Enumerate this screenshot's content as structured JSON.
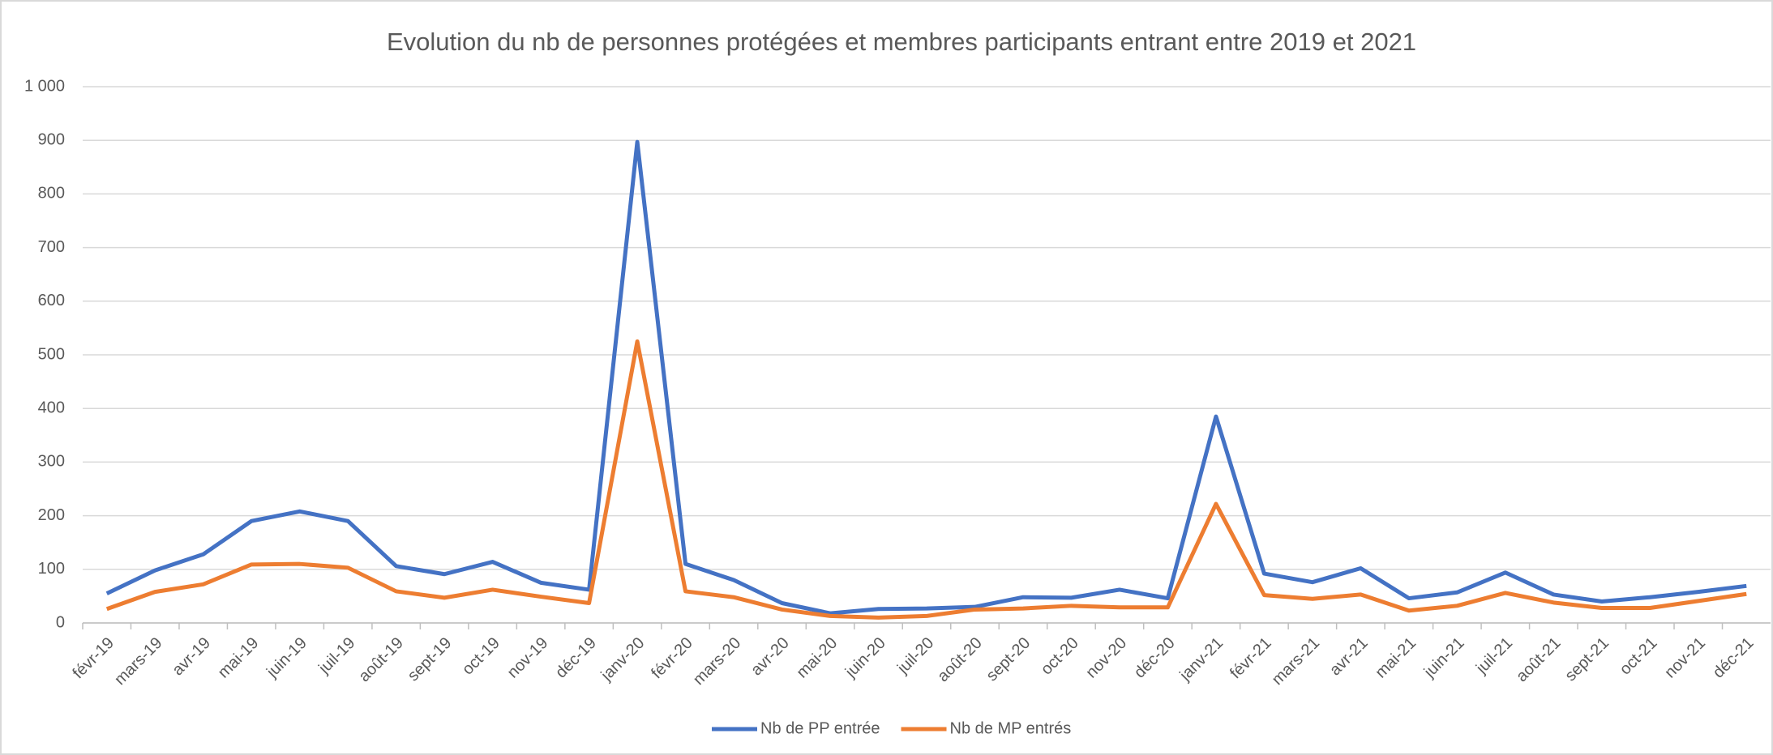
{
  "chart_data": {
    "type": "line",
    "title": "Evolution du nb de personnes protégées et membres participants entrant entre 2019 et 2021",
    "categories": [
      "févr-19",
      "mars-19",
      "avr-19",
      "mai-19",
      "juin-19",
      "juil-19",
      "août-19",
      "sept-19",
      "oct-19",
      "nov-19",
      "déc-19",
      "janv-20",
      "févr-20",
      "mars-20",
      "avr-20",
      "mai-20",
      "juin-20",
      "juil-20",
      "août-20",
      "sept-20",
      "oct-20",
      "nov-20",
      "déc-20",
      "janv-21",
      "févr-21",
      "mars-21",
      "avr-21",
      "mai-21",
      "juin-21",
      "juil-21",
      "août-21",
      "sept-21",
      "oct-21",
      "nov-21",
      "déc-21"
    ],
    "series": [
      {
        "name": "Nb de PP entrée",
        "color": "#4472c4",
        "values": [
          55,
          98,
          128,
          190,
          208,
          190,
          106,
          91,
          114,
          75,
          62,
          897,
          110,
          80,
          37,
          18,
          26,
          27,
          30,
          48,
          47,
          62,
          46,
          385,
          92,
          76,
          102,
          46,
          57,
          94,
          53,
          40,
          48,
          58,
          69
        ]
      },
      {
        "name": "Nb de MP entrés",
        "color": "#ed7d31",
        "values": [
          26,
          58,
          72,
          109,
          110,
          103,
          59,
          47,
          62,
          49,
          37,
          525,
          59,
          48,
          25,
          13,
          10,
          13,
          25,
          27,
          32,
          29,
          29,
          222,
          52,
          45,
          53,
          23,
          32,
          56,
          38,
          28,
          28,
          41,
          54
        ]
      }
    ],
    "ylim": [
      0,
      1000
    ],
    "yticks": [
      0,
      100,
      200,
      300,
      400,
      500,
      600,
      700,
      800,
      900,
      {
        "value": 1000,
        "label": "1 000"
      }
    ],
    "grid": true,
    "legend": "bottom"
  }
}
